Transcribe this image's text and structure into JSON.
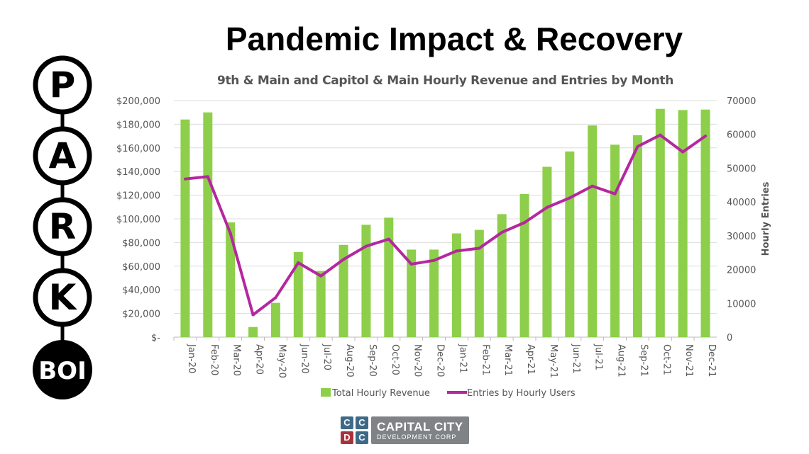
{
  "page_title": "Pandemic Impact & Recovery",
  "logo_park": {
    "letters": [
      "P",
      "A",
      "R",
      "K"
    ],
    "bottom": "BOI"
  },
  "logo_ccdc": {
    "squares": [
      "C",
      "C",
      "D",
      "C"
    ],
    "line1": "CAPITAL CITY",
    "line2": "DEVELOPMENT CORP",
    "colors": {
      "blue": "#3d6a86",
      "red": "#a8323a",
      "gray": "#808385"
    }
  },
  "chart_data": {
    "type": "bar+line",
    "title": "9th & Main and Capitol & Main Hourly Revenue and Entries by Month",
    "categories": [
      "Jan-20",
      "Feb-20",
      "Mar-20",
      "Apr-20",
      "May-20",
      "Jun-20",
      "Jul-20",
      "Aug-20",
      "Sep-20",
      "Oct-20",
      "Nov-20",
      "Dec-20",
      "Jan-21",
      "Feb-21",
      "Mar-21",
      "Apr-21",
      "May-21",
      "Jun-21",
      "Jul-21",
      "Aug-21",
      "Sep-21",
      "Oct-21",
      "Nov-21",
      "Dec-21"
    ],
    "series": [
      {
        "name": "Total Hourly Revenue",
        "type": "bar",
        "axis": "left",
        "color": "#8dcf4a",
        "values": [
          184000,
          190000,
          97000,
          8600,
          29000,
          72000,
          56000,
          78000,
          95000,
          101000,
          74000,
          74000,
          87700,
          90700,
          104000,
          121000,
          144000,
          157000,
          179000,
          162700,
          170700,
          193000,
          192000,
          192400
        ]
      },
      {
        "name": "Entries by Hourly Users",
        "type": "line",
        "axis": "right",
        "color": "#b5279e",
        "values": [
          46800,
          47500,
          30700,
          6600,
          11700,
          22000,
          18100,
          23000,
          26900,
          29000,
          21600,
          22700,
          25500,
          26300,
          31000,
          33900,
          38400,
          41200,
          44700,
          42400,
          56400,
          59800,
          54800,
          59500
        ]
      }
    ],
    "left_axis": {
      "ylim": [
        0,
        200000
      ],
      "ticks": [
        "$-",
        "$20,000",
        "$40,000",
        "$60,000",
        "$80,000",
        "$100,000",
        "$120,000",
        "$140,000",
        "$160,000",
        "$180,000",
        "$200,000"
      ]
    },
    "right_axis": {
      "ylim": [
        0,
        70000
      ],
      "label": "Hourly Entries",
      "ticks": [
        "0",
        "10000",
        "20000",
        "30000",
        "40000",
        "50000",
        "60000",
        "70000"
      ]
    },
    "grid": true,
    "legend_placement": "bottom"
  }
}
